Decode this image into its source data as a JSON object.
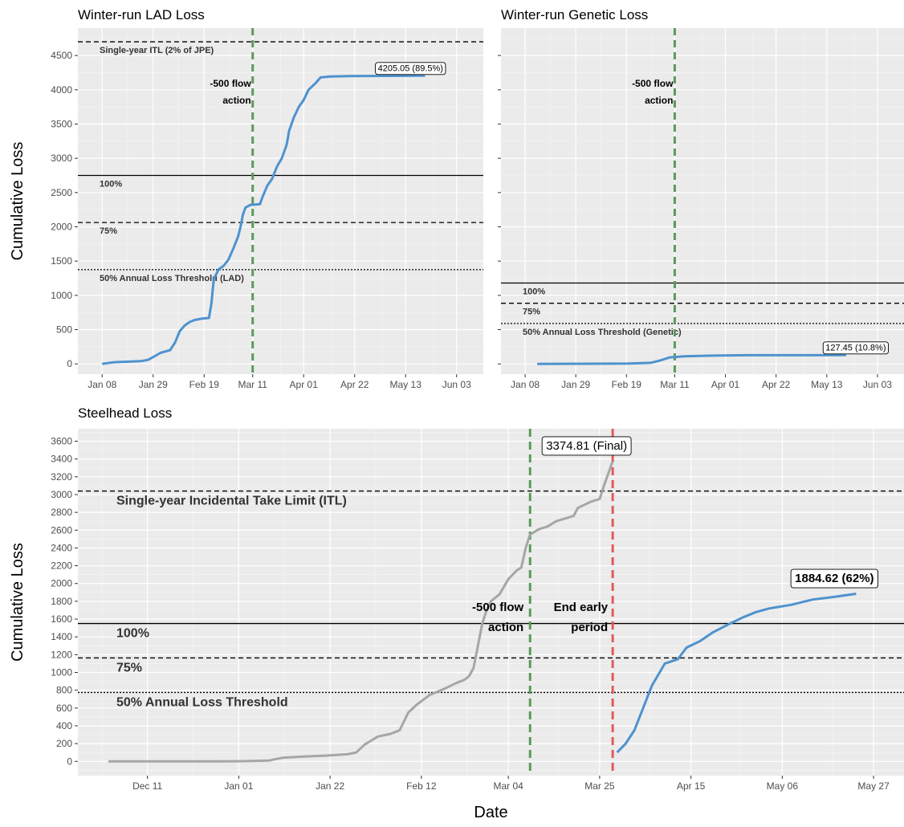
{
  "chart_data": [
    {
      "type": "line",
      "title": "Winter-run LAD Loss",
      "ylabel": "Cumulative Loss",
      "ylim": [
        -150,
        4900
      ],
      "xlim": [
        "2024-12-29",
        "2025-06-14"
      ],
      "xticks": [
        {
          "date": "2025-01-08",
          "label": "Jan 08"
        },
        {
          "date": "2025-01-29",
          "label": "Jan 29"
        },
        {
          "date": "2025-02-19",
          "label": "Feb 19"
        },
        {
          "date": "2025-03-11",
          "label": "Mar 11"
        },
        {
          "date": "2025-04-01",
          "label": "Apr 01"
        },
        {
          "date": "2025-04-22",
          "label": "Apr 22"
        },
        {
          "date": "2025-05-13",
          "label": "May 13"
        },
        {
          "date": "2025-06-03",
          "label": "Jun 03"
        }
      ],
      "yticks": [
        0,
        500,
        1000,
        1500,
        2000,
        2500,
        3000,
        3500,
        4000,
        4500
      ],
      "show_ytick_labels": true,
      "hlines": [
        {
          "y": 4700,
          "style": "dashed",
          "label": "Single-year ITL (2% of JPE)"
        },
        {
          "y": 2750,
          "style": "solid",
          "label": "100%"
        },
        {
          "y": 2063,
          "style": "dashed",
          "label": "75%"
        },
        {
          "y": 1375,
          "style": "dotted",
          "label": "50% Annual Loss Threshold (LAD)"
        }
      ],
      "vlines": [
        {
          "date": "2025-03-11",
          "color": "#5a9a5a",
          "label_lines": [
            "-500 flow",
            "action"
          ]
        }
      ],
      "series": [
        {
          "color": "#4e92cf",
          "points": [
            [
              "2025-01-08",
              0
            ],
            [
              "2025-01-10",
              10
            ],
            [
              "2025-01-13",
              25
            ],
            [
              "2025-01-17",
              30
            ],
            [
              "2025-01-24",
              40
            ],
            [
              "2025-01-27",
              60
            ],
            [
              "2025-01-30",
              120
            ],
            [
              "2025-02-01",
              160
            ],
            [
              "2025-02-05",
              200
            ],
            [
              "2025-02-07",
              310
            ],
            [
              "2025-02-09",
              480
            ],
            [
              "2025-02-11",
              560
            ],
            [
              "2025-02-13",
              610
            ],
            [
              "2025-02-15",
              640
            ],
            [
              "2025-02-18",
              660
            ],
            [
              "2025-02-21",
              670
            ],
            [
              "2025-02-22",
              880
            ],
            [
              "2025-02-23",
              1240
            ],
            [
              "2025-02-25",
              1380
            ],
            [
              "2025-02-27",
              1430
            ],
            [
              "2025-03-01",
              1520
            ],
            [
              "2025-03-03",
              1680
            ],
            [
              "2025-03-05",
              1860
            ],
            [
              "2025-03-06",
              2000
            ],
            [
              "2025-03-07",
              2180
            ],
            [
              "2025-03-08",
              2280
            ],
            [
              "2025-03-10",
              2320
            ],
            [
              "2025-03-14",
              2330
            ],
            [
              "2025-03-15",
              2430
            ],
            [
              "2025-03-17",
              2600
            ],
            [
              "2025-03-19",
              2700
            ],
            [
              "2025-03-21",
              2880
            ],
            [
              "2025-03-23",
              3000
            ],
            [
              "2025-03-25",
              3200
            ],
            [
              "2025-03-26",
              3400
            ],
            [
              "2025-03-28",
              3600
            ],
            [
              "2025-03-30",
              3750
            ],
            [
              "2025-04-01",
              3850
            ],
            [
              "2025-04-03",
              4000
            ],
            [
              "2025-04-06",
              4100
            ],
            [
              "2025-04-08",
              4180
            ],
            [
              "2025-04-12",
              4195
            ],
            [
              "2025-04-20",
              4200
            ],
            [
              "2025-05-21",
              4205.05
            ]
          ]
        }
      ],
      "annotations": [
        {
          "date": "2025-05-15",
          "y": 4205.05,
          "text": "4205.05 (89.5%)"
        }
      ]
    },
    {
      "type": "line",
      "title": "Winter-run Genetic Loss",
      "ylabel": "",
      "ylim": [
        -150,
        4900
      ],
      "xlim": [
        "2024-12-29",
        "2025-06-14"
      ],
      "xticks": [
        {
          "date": "2025-01-08",
          "label": "Jan 08"
        },
        {
          "date": "2025-01-29",
          "label": "Jan 29"
        },
        {
          "date": "2025-02-19",
          "label": "Feb 19"
        },
        {
          "date": "2025-03-11",
          "label": "Mar 11"
        },
        {
          "date": "2025-04-01",
          "label": "Apr 01"
        },
        {
          "date": "2025-04-22",
          "label": "Apr 22"
        },
        {
          "date": "2025-05-13",
          "label": "May 13"
        },
        {
          "date": "2025-06-03",
          "label": "Jun 03"
        }
      ],
      "yticks": [
        0,
        500,
        1000,
        1500,
        2000,
        2500,
        3000,
        3500,
        4000,
        4500
      ],
      "show_ytick_labels": false,
      "hlines": [
        {
          "y": 1180,
          "style": "solid",
          "label": "100%"
        },
        {
          "y": 885,
          "style": "dashed",
          "label": "75%"
        },
        {
          "y": 590,
          "style": "dotted",
          "label": "50% Annual Loss Threshold (Genetic)"
        }
      ],
      "vlines": [
        {
          "date": "2025-03-11",
          "color": "#5a9a5a",
          "label_lines": [
            "-500 flow",
            "action"
          ]
        }
      ],
      "series": [
        {
          "color": "#4e92cf",
          "points": [
            [
              "2025-01-13",
              0
            ],
            [
              "2025-02-20",
              5
            ],
            [
              "2025-03-01",
              15
            ],
            [
              "2025-03-05",
              50
            ],
            [
              "2025-03-09",
              95
            ],
            [
              "2025-03-15",
              110
            ],
            [
              "2025-03-25",
              120
            ],
            [
              "2025-04-10",
              127
            ],
            [
              "2025-05-21",
              127.45
            ]
          ]
        }
      ],
      "annotations": [
        {
          "date": "2025-05-25",
          "y": 127.45,
          "text": "127.45 (10.8%)"
        }
      ]
    },
    {
      "type": "line",
      "title": "Steelhead Loss",
      "ylabel": "Cumulative Loss",
      "xlabel": "Date",
      "ylim": [
        -160,
        3740
      ],
      "xlim": [
        "2024-11-25",
        "2025-06-03"
      ],
      "xticks": [
        {
          "date": "2024-12-11",
          "label": "Dec 11"
        },
        {
          "date": "2025-01-01",
          "label": "Jan 01"
        },
        {
          "date": "2025-01-22",
          "label": "Jan 22"
        },
        {
          "date": "2025-02-12",
          "label": "Feb 12"
        },
        {
          "date": "2025-03-04",
          "label": "Mar 04"
        },
        {
          "date": "2025-03-25",
          "label": "Mar 25"
        },
        {
          "date": "2025-04-15",
          "label": "Apr 15"
        },
        {
          "date": "2025-05-06",
          "label": "May 06"
        },
        {
          "date": "2025-05-27",
          "label": "May 27"
        }
      ],
      "yticks": [
        0,
        200,
        400,
        600,
        800,
        1000,
        1200,
        1400,
        1600,
        1800,
        2000,
        2200,
        2400,
        2600,
        2800,
        3000,
        3200,
        3400,
        3600
      ],
      "show_ytick_labels": true,
      "hlines": [
        {
          "y": 3040,
          "style": "dashed",
          "label": "Single-year Incidental Take Limit (ITL)"
        },
        {
          "y": 1550,
          "style": "solid",
          "label": "100%"
        },
        {
          "y": 1163,
          "style": "dashed",
          "label": "75%"
        },
        {
          "y": 775,
          "style": "dotted",
          "label": "50% Annual Loss Threshold"
        }
      ],
      "vlines": [
        {
          "date": "2025-03-09",
          "color": "#5a9a5a",
          "label_lines": [
            "-500 flow",
            "action"
          ]
        },
        {
          "date": "2025-03-28",
          "color": "#e05a5a",
          "label_lines": [
            "End early",
            "period"
          ]
        }
      ],
      "series": [
        {
          "name": "early",
          "color": "#a6a6a6",
          "points": [
            [
              "2024-12-02",
              0
            ],
            [
              "2024-12-20",
              0
            ],
            [
              "2025-01-01",
              2
            ],
            [
              "2025-01-08",
              10
            ],
            [
              "2025-01-11",
              40
            ],
            [
              "2025-01-16",
              55
            ],
            [
              "2025-01-21",
              65
            ],
            [
              "2025-01-26",
              80
            ],
            [
              "2025-01-28",
              100
            ],
            [
              "2025-01-30",
              190
            ],
            [
              "2025-01-31",
              220
            ],
            [
              "2025-02-02",
              280
            ],
            [
              "2025-02-05",
              310
            ],
            [
              "2025-02-07",
              350
            ],
            [
              "2025-02-09",
              550
            ],
            [
              "2025-02-11",
              640
            ],
            [
              "2025-02-14",
              750
            ],
            [
              "2025-02-17",
              810
            ],
            [
              "2025-02-20",
              880
            ],
            [
              "2025-02-22",
              920
            ],
            [
              "2025-02-23",
              960
            ],
            [
              "2025-02-24",
              1050
            ],
            [
              "2025-02-25",
              1300
            ],
            [
              "2025-02-26",
              1550
            ],
            [
              "2025-02-27",
              1700
            ],
            [
              "2025-02-28",
              1800
            ],
            [
              "2025-03-02",
              1880
            ],
            [
              "2025-03-04",
              2050
            ],
            [
              "2025-03-06",
              2150
            ],
            [
              "2025-03-07",
              2180
            ],
            [
              "2025-03-08",
              2400
            ],
            [
              "2025-03-09",
              2550
            ],
            [
              "2025-03-11",
              2610
            ],
            [
              "2025-03-13",
              2640
            ],
            [
              "2025-03-15",
              2700
            ],
            [
              "2025-03-19",
              2760
            ],
            [
              "2025-03-20",
              2850
            ],
            [
              "2025-03-23",
              2920
            ],
            [
              "2025-03-25",
              2950
            ],
            [
              "2025-03-26",
              3100
            ],
            [
              "2025-03-28",
              3374.81
            ]
          ]
        },
        {
          "name": "late",
          "color": "#4e92cf",
          "points": [
            [
              "2025-03-29",
              100
            ],
            [
              "2025-03-31",
              200
            ],
            [
              "2025-04-02",
              350
            ],
            [
              "2025-04-04",
              600
            ],
            [
              "2025-04-06",
              850
            ],
            [
              "2025-04-09",
              1100
            ],
            [
              "2025-04-12",
              1150
            ],
            [
              "2025-04-14",
              1280
            ],
            [
              "2025-04-17",
              1350
            ],
            [
              "2025-04-20",
              1450
            ],
            [
              "2025-04-24",
              1550
            ],
            [
              "2025-04-27",
              1620
            ],
            [
              "2025-04-30",
              1680
            ],
            [
              "2025-05-03",
              1720
            ],
            [
              "2025-05-08",
              1760
            ],
            [
              "2025-05-13",
              1820
            ],
            [
              "2025-05-18",
              1850
            ],
            [
              "2025-05-23",
              1884.62
            ]
          ]
        }
      ],
      "annotations": [
        {
          "date": "2025-03-22",
          "y": 3374.81,
          "text": "3374.81 (Final)"
        },
        {
          "date": "2025-05-18",
          "y": 1884.62,
          "text": "1884.62 (62%)",
          "bold": true
        }
      ]
    }
  ]
}
